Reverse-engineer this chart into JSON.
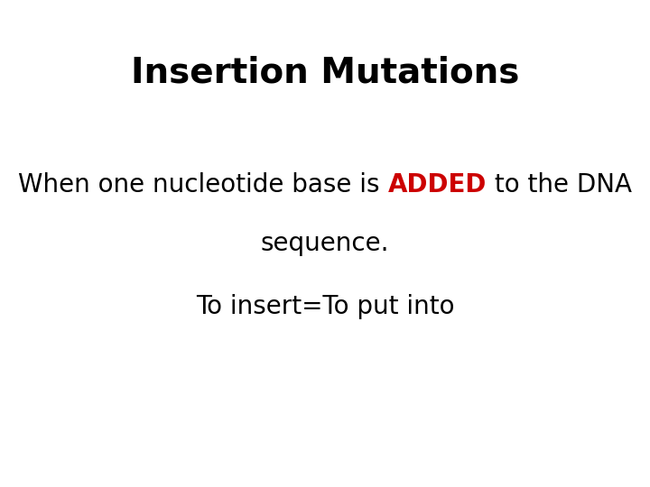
{
  "title": "Insertion Mutations",
  "title_fontsize": 28,
  "title_fontweight": "bold",
  "title_color": "#000000",
  "line1_before": "When one nucleotide base is ",
  "line1_highlight": "ADDED",
  "line1_after": " to the DNA",
  "line2": "sequence.",
  "line3": "To insert=To put into",
  "body_fontsize": 20,
  "body_color": "#000000",
  "highlight_color": "#cc0000",
  "background_color": "#ffffff"
}
